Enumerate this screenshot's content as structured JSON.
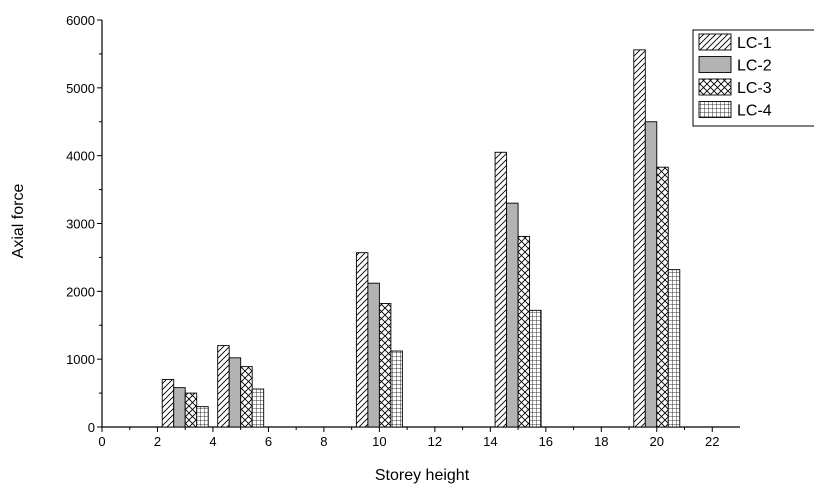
{
  "chart_data": {
    "type": "bar",
    "title": "",
    "xlabel": "Storey height",
    "ylabel": "Axial force",
    "xlim": [
      0,
      23
    ],
    "ylim": [
      0,
      6000
    ],
    "x_ticks": [
      0,
      2,
      4,
      6,
      8,
      10,
      12,
      14,
      16,
      18,
      20,
      22
    ],
    "y_ticks": [
      0,
      1000,
      2000,
      3000,
      4000,
      5000,
      6000
    ],
    "x": [
      3,
      5,
      10,
      15,
      20
    ],
    "grid": false,
    "legend_position": "top-right",
    "series": [
      {
        "name": "LC-1",
        "pattern": "diagonal-hatch",
        "color": "#ffffff",
        "values": [
          700,
          1200,
          2570,
          4050,
          5560
        ]
      },
      {
        "name": "LC-2",
        "pattern": "solid",
        "color": "#b3b3b3",
        "values": [
          580,
          1020,
          2120,
          3300,
          4500
        ]
      },
      {
        "name": "LC-3",
        "pattern": "cross-hatch",
        "color": "#ffffff",
        "values": [
          500,
          890,
          1820,
          2810,
          3830
        ]
      },
      {
        "name": "LC-4",
        "pattern": "grid",
        "color": "#ffffff",
        "values": [
          300,
          560,
          1120,
          1720,
          2320
        ]
      }
    ]
  }
}
